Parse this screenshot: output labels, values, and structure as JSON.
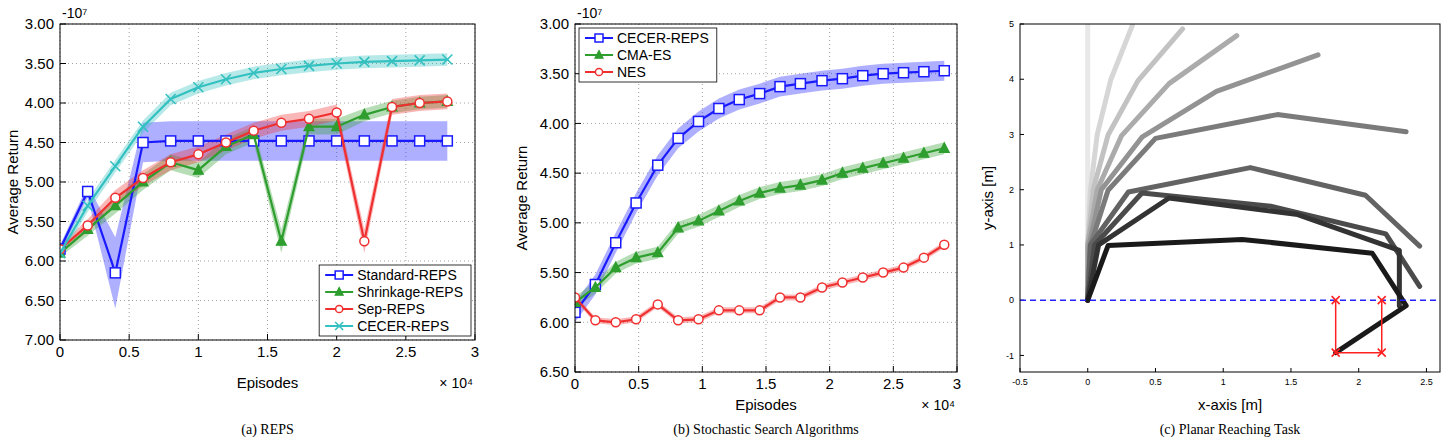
{
  "chart_data": [
    {
      "type": "line",
      "caption": "(a) REPS",
      "xlabel": "Episodes",
      "ylabel": "Average Return",
      "y_offset_text": "-10⁷",
      "x_offset_text": "× 10⁴",
      "xlim": [
        0,
        3
      ],
      "xticks": [
        0,
        0.5,
        1,
        1.5,
        2,
        2.5,
        3
      ],
      "ylim": [
        7,
        3
      ],
      "yticks": [
        {
          "value": 3,
          "label": "3.00"
        },
        {
          "value": 3.5,
          "label": "3.50"
        },
        {
          "value": 4,
          "label": "4.00"
        },
        {
          "value": 4.5,
          "label": "4.50"
        },
        {
          "value": 5,
          "label": "5.00"
        },
        {
          "value": 5.5,
          "label": "5.50"
        },
        {
          "value": 6,
          "label": "6.00"
        },
        {
          "value": 6.5,
          "label": "6.50"
        },
        {
          "value": 7,
          "label": "7.00"
        }
      ],
      "grid": true,
      "legend": "lower right",
      "x": [
        0,
        0.2,
        0.4,
        0.6,
        0.8,
        1,
        1.2,
        1.4,
        1.6,
        1.8,
        2,
        2.2,
        2.4,
        2.6,
        2.8
      ],
      "series": [
        {
          "name": "Standard-REPS",
          "color": "#1a1aff",
          "marker": "square",
          "values": [
            5.85,
            5.12,
            6.15,
            4.5,
            4.48,
            4.48,
            4.48,
            4.48,
            4.48,
            4.48,
            4.48,
            4.48,
            4.48,
            4.48,
            4.48
          ],
          "errors": [
            0.05,
            0.08,
            0.45,
            0.25,
            0.25,
            0.25,
            0.25,
            0.25,
            0.25,
            0.25,
            0.25,
            0.25,
            0.25,
            0.25,
            0.25
          ]
        },
        {
          "name": "Shrinkage-REPS",
          "color": "#2e9e2e",
          "marker": "triangle",
          "values": [
            5.9,
            5.6,
            5.3,
            5.0,
            4.75,
            4.85,
            4.55,
            4.4,
            5.75,
            4.3,
            4.3,
            4.15,
            4.05,
            4.0,
            3.98
          ],
          "errors": [
            0.05,
            0.08,
            0.1,
            0.1,
            0.1,
            0.1,
            0.1,
            0.1,
            0.15,
            0.1,
            0.1,
            0.08,
            0.08,
            0.08,
            0.08
          ]
        },
        {
          "name": "Sep-REPS",
          "color": "#f03030",
          "marker": "circle",
          "values": [
            5.85,
            5.55,
            5.2,
            4.95,
            4.75,
            4.65,
            4.5,
            4.35,
            4.25,
            4.2,
            4.12,
            5.75,
            4.05,
            4.0,
            3.98
          ],
          "errors": [
            0.05,
            0.08,
            0.1,
            0.1,
            0.1,
            0.1,
            0.1,
            0.1,
            0.1,
            0.1,
            0.1,
            0.15,
            0.1,
            0.1,
            0.1
          ]
        },
        {
          "name": "CECER-REPS",
          "color": "#33c0c0",
          "marker": "x",
          "values": [
            5.9,
            5.3,
            4.8,
            4.3,
            3.95,
            3.8,
            3.7,
            3.62,
            3.57,
            3.53,
            3.5,
            3.48,
            3.47,
            3.46,
            3.45
          ],
          "errors": [
            0.08,
            0.08,
            0.08,
            0.08,
            0.08,
            0.08,
            0.08,
            0.08,
            0.08,
            0.08,
            0.08,
            0.08,
            0.08,
            0.08,
            0.08
          ]
        }
      ]
    },
    {
      "type": "line",
      "caption": "(b) Stochastic Search Algorithms",
      "xlabel": "Episodes",
      "ylabel": "Average Return",
      "y_offset_text": "-10⁷",
      "x_offset_text": "× 10⁴",
      "xlim": [
        0,
        3
      ],
      "xticks": [
        0,
        0.5,
        1,
        1.5,
        2,
        2.5,
        3
      ],
      "ylim": [
        6.5,
        3
      ],
      "yticks": [
        {
          "value": 3,
          "label": "3.00"
        },
        {
          "value": 3.5,
          "label": "3.50"
        },
        {
          "value": 4,
          "label": "4.00"
        },
        {
          "value": 4.5,
          "label": "4.50"
        },
        {
          "value": 5,
          "label": "5.00"
        },
        {
          "value": 5.5,
          "label": "5.50"
        },
        {
          "value": 6,
          "label": "6.00"
        },
        {
          "value": 6.5,
          "label": "6.50"
        }
      ],
      "grid": true,
      "legend": "upper left",
      "x": [
        0,
        0.16,
        0.32,
        0.48,
        0.65,
        0.81,
        0.97,
        1.13,
        1.29,
        1.45,
        1.61,
        1.77,
        1.94,
        2.1,
        2.26,
        2.42,
        2.58,
        2.74,
        2.9
      ],
      "series": [
        {
          "name": "CECER-REPS",
          "color": "#1a1aff",
          "marker": "square",
          "values": [
            5.9,
            5.62,
            5.2,
            4.8,
            4.42,
            4.15,
            3.98,
            3.85,
            3.76,
            3.7,
            3.63,
            3.6,
            3.57,
            3.55,
            3.52,
            3.5,
            3.49,
            3.48,
            3.47
          ],
          "errors": [
            0.1,
            0.1,
            0.1,
            0.1,
            0.1,
            0.1,
            0.1,
            0.1,
            0.1,
            0.1,
            0.1,
            0.1,
            0.1,
            0.1,
            0.1,
            0.1,
            0.1,
            0.1,
            0.1
          ]
        },
        {
          "name": "CMA-ES",
          "color": "#2e9e2e",
          "marker": "triangle",
          "values": [
            5.8,
            5.65,
            5.45,
            5.35,
            5.3,
            5.05,
            4.98,
            4.88,
            4.78,
            4.7,
            4.65,
            4.62,
            4.57,
            4.5,
            4.45,
            4.4,
            4.35,
            4.3,
            4.25
          ],
          "errors": [
            0.06,
            0.06,
            0.06,
            0.06,
            0.06,
            0.06,
            0.06,
            0.06,
            0.06,
            0.06,
            0.06,
            0.06,
            0.06,
            0.06,
            0.06,
            0.06,
            0.06,
            0.06,
            0.06
          ]
        },
        {
          "name": "NES",
          "color": "#f03030",
          "marker": "circle",
          "values": [
            5.75,
            5.98,
            6.0,
            5.97,
            5.82,
            5.98,
            5.97,
            5.88,
            5.88,
            5.88,
            5.75,
            5.75,
            5.65,
            5.6,
            5.55,
            5.5,
            5.45,
            5.35,
            5.22
          ],
          "errors": [
            0.03,
            0.03,
            0.03,
            0.03,
            0.03,
            0.03,
            0.03,
            0.03,
            0.03,
            0.03,
            0.03,
            0.03,
            0.03,
            0.03,
            0.03,
            0.03,
            0.03,
            0.03,
            0.03
          ]
        }
      ]
    },
    {
      "type": "line",
      "caption": "(c) Planar Reaching Task",
      "xlabel": "x-axis [m]",
      "ylabel": "y-axis [m]",
      "xlim": [
        -0.5,
        2.6
      ],
      "xticks": [
        -0.5,
        0,
        0.5,
        1,
        1.5,
        2,
        2.5
      ],
      "ylim": [
        -1.3,
        5
      ],
      "yticks": [
        -1,
        0,
        1,
        2,
        3,
        4,
        5
      ],
      "grid": false,
      "series": [
        {
          "color": "#e8e8e8",
          "x": [
            0,
            0,
            0,
            0,
            0,
            0
          ],
          "values": [
            0,
            1,
            2,
            3,
            4,
            5
          ]
        },
        {
          "color": "#d6d6d6",
          "x": [
            0,
            0,
            0.02,
            0.07,
            0.17,
            0.33
          ],
          "values": [
            0,
            1,
            2,
            3,
            3.99,
            4.98
          ]
        },
        {
          "color": "#c2c2c2",
          "x": [
            0,
            0,
            0.04,
            0.15,
            0.37,
            0.7
          ],
          "values": [
            0,
            1,
            2,
            2.99,
            3.97,
            4.91
          ]
        },
        {
          "color": "#ababab",
          "x": [
            0,
            0,
            0.07,
            0.25,
            0.6,
            1.1
          ],
          "values": [
            0,
            1,
            2,
            2.98,
            3.92,
            4.79
          ]
        },
        {
          "color": "#939393",
          "x": [
            0,
            0.01,
            0.1,
            0.4,
            0.95,
            1.7
          ],
          "values": [
            0,
            1,
            2,
            2.95,
            3.78,
            4.44
          ]
        },
        {
          "color": "#7b7b7b",
          "x": [
            0,
            0.02,
            0.15,
            0.5,
            1.4,
            2.35
          ],
          "values": [
            0,
            1,
            1.99,
            2.93,
            3.36,
            3.05
          ]
        },
        {
          "color": "#636363",
          "x": [
            0,
            0.02,
            0.3,
            1.2,
            2.05,
            2.45
          ],
          "values": [
            0,
            1,
            1.96,
            2.4,
            1.9,
            0.98
          ]
        },
        {
          "color": "#4b4b4b",
          "x": [
            0,
            0.05,
            0.4,
            1.35,
            2.2,
            2.45
          ],
          "values": [
            0,
            1,
            1.94,
            1.7,
            1.2,
            0.25
          ]
        },
        {
          "color": "#333333",
          "x": [
            0,
            0.08,
            0.6,
            1.55,
            2.3,
            2.3
          ],
          "values": [
            0,
            1,
            1.85,
            1.55,
            0.9,
            -0.1
          ]
        },
        {
          "color": "#1a1a1a",
          "x": [
            0,
            0.15,
            1.14,
            2.1,
            2.35,
            1.83
          ],
          "values": [
            0,
            0.99,
            1.1,
            0.85,
            -0.1,
            -0.95
          ]
        },
        {
          "color": "#2222ff",
          "line_style": "dashed",
          "x": [
            -0.5,
            2.6
          ],
          "values": [
            0,
            0
          ]
        },
        {
          "color": "#ff2020",
          "line_style": "solid",
          "marker": "x",
          "x": [
            1.83,
            1.83,
            2.17,
            2.17
          ],
          "values": [
            0,
            -0.95,
            -0.95,
            0
          ]
        }
      ]
    }
  ]
}
